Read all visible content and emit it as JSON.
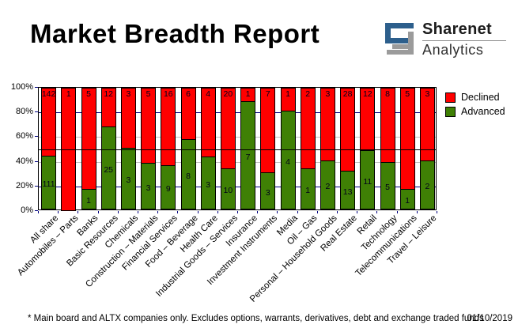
{
  "header": {
    "title": "Market Breadth Report",
    "logo": {
      "line1": "Sharenet",
      "line2": "Analytics",
      "mark_blue": "#2d5f8c",
      "mark_gray": "#9b9b9b"
    }
  },
  "legend": {
    "items": [
      {
        "label": "Declined",
        "color": "#ff0000"
      },
      {
        "label": "Advanced",
        "color": "#3f8005"
      }
    ]
  },
  "chart_data": {
    "type": "bar",
    "subtype": "100%-stacked-column",
    "title": "Market Breadth Report",
    "categories": [
      "All share",
      "Automobiles – Parts",
      "Banks",
      "Basic Resources",
      "Chemicals",
      "Construction – Materials",
      "Financial Services",
      "Food – Beverage",
      "Health Care",
      "Industrial Goods – Services",
      "Insurance",
      "Investment Instruments",
      "Media",
      "Oil – Gas",
      "Personal – Household Goods",
      "Real Estate",
      "Retail",
      "Technology",
      "Telecommunications",
      "Travel – Leisure"
    ],
    "series": [
      {
        "name": "Declined",
        "color": "#ff0000",
        "values": [
          142,
          1,
          5,
          12,
          3,
          5,
          16,
          6,
          4,
          20,
          1,
          7,
          1,
          2,
          3,
          28,
          12,
          8,
          5,
          3
        ]
      },
      {
        "name": "Advanced",
        "color": "#3f8005",
        "values": [
          111,
          0,
          1,
          25,
          3,
          3,
          9,
          8,
          3,
          10,
          7,
          3,
          4,
          1,
          2,
          13,
          11,
          5,
          1,
          2
        ]
      }
    ],
    "y_axis": {
      "min": 0,
      "max": 100,
      "tick_labels": [
        "100%",
        "80%",
        "60%",
        "40%",
        "20%",
        "0%"
      ],
      "gridlines": [
        {
          "percent": 80,
          "color": "#000080",
          "overlay": false
        },
        {
          "percent": 60,
          "color": "#c0c0c0",
          "overlay": false
        },
        {
          "percent": 50,
          "color": "#000000",
          "overlay": true
        },
        {
          "percent": 40,
          "color": "#c0c0c0",
          "overlay": false
        },
        {
          "percent": 20,
          "color": "#000080",
          "overlay": false
        }
      ],
      "tick_color": "#000080"
    },
    "legend_position": "top-right",
    "grid": true,
    "bar_value_labels": "shown: declined count at top of bar, advanced count centered in green segment"
  },
  "footer": {
    "note": "* Main board and ALTX companies only. Excludes options, warrants, derivatives, debt and exchange traded funds",
    "date": "01/10/2019"
  }
}
